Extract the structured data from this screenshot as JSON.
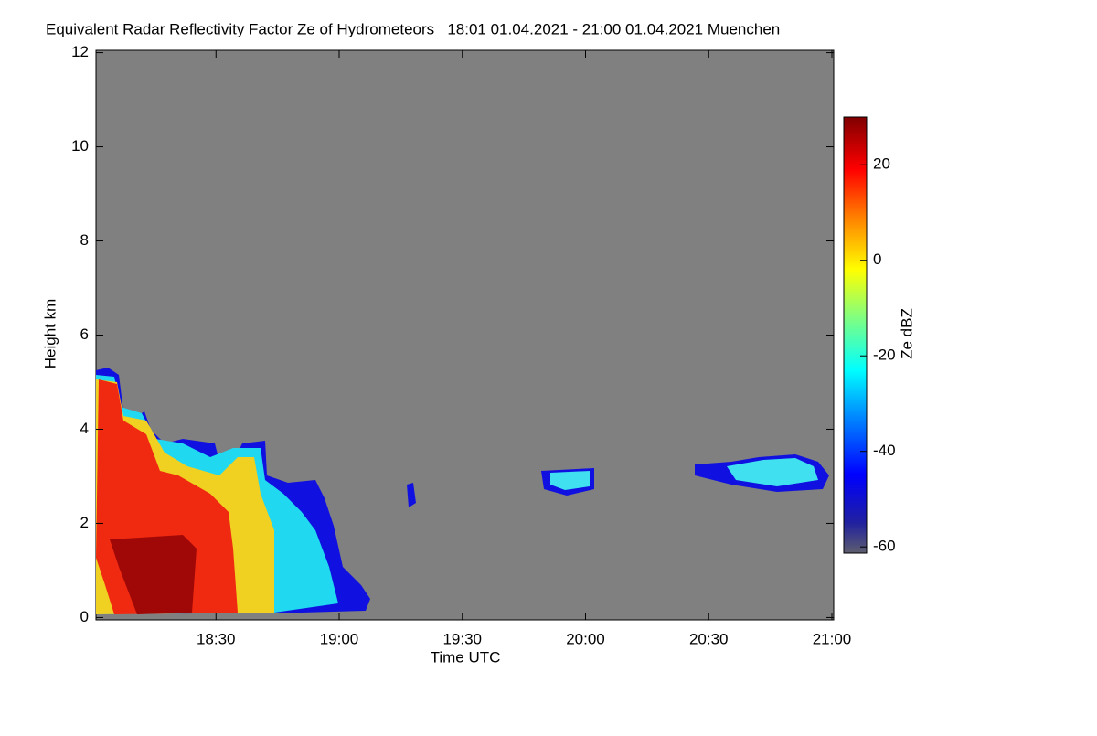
{
  "chart_data": {
    "type": "heatmap",
    "title": "Equivalent Radar Reflectivity Factor Ze of Hydrometeors   18:01 01.04.2021 - 21:00 01.04.2021 Muenchen",
    "x_label": "Time UTC",
    "y_label": "Height km",
    "colorbar_label": "Ze dBZ",
    "xlim": [
      1081,
      1260
    ],
    "xticks": [
      {
        "value": 1110,
        "label": "18:30"
      },
      {
        "value": 1140,
        "label": "19:00"
      },
      {
        "value": 1170,
        "label": "19:30"
      },
      {
        "value": 1200,
        "label": "20:00"
      },
      {
        "value": 1230,
        "label": "20:30"
      },
      {
        "value": 1260,
        "label": "21:00"
      }
    ],
    "ylim": [
      -0.05,
      12.05
    ],
    "yticks": [
      0,
      2,
      4,
      6,
      8,
      10,
      12
    ],
    "clim": [
      -61.3,
      30
    ],
    "cticks": [
      -60,
      -40,
      -20,
      0,
      20
    ],
    "background": "#808080"
  }
}
